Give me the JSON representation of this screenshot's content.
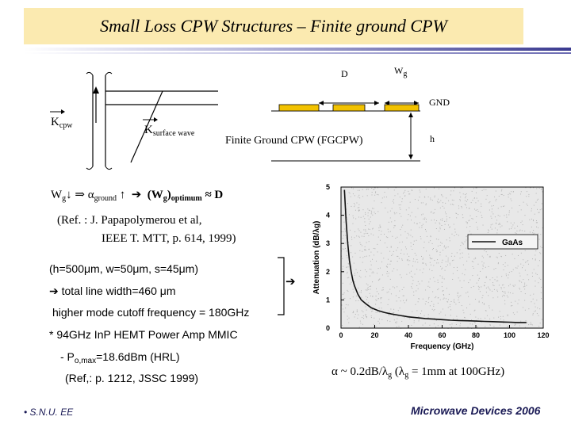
{
  "title": "Small Loss CPW Structures – Finite ground CPW",
  "diagram": {
    "kcpw_main": "K",
    "kcpw_sub": "cpw",
    "ksw_main": "K",
    "ksw_sub": "surface wave",
    "label_d": "D",
    "label_wg_main": "W",
    "label_wg_sub": "g",
    "label_gnd": "GND",
    "label_h": "h",
    "caption": "Finite Ground CPW (FGCPW)"
  },
  "relation": {
    "wg": "W",
    "wg_sub": "g",
    "down_arrow": "↓",
    "implies": "⇒",
    "alpha": "α",
    "alpha_sub": "ground",
    "up_arrow": "↑",
    "right_arrow": "➔",
    "optimum_main": "(W",
    "optimum_sub1": "g",
    "optimum_close": ")",
    "optimum_sub2": "optimum",
    "approx": "≈",
    "d": "D"
  },
  "reference": {
    "line1": "(Ref. : J. Papapolymerou et al,",
    "line2": "IEEE T. MTT, p. 614, 1999)"
  },
  "specs": {
    "params": "(h=500μm, w=50μm, s=45μm)",
    "arrow": "➔",
    "total_width": "total line width=460 μm",
    "cutoff": "higher mode cutoff frequency = 180GHz",
    "mmic": "* 94GHz InP HEMT Power Amp MMIC",
    "pout_prefix": "- P",
    "pout_sub": "o,max",
    "pout_value": "=18.6dBm (HRL)",
    "ref2": "(Ref,: p. 1212, JSSC 1999)"
  },
  "result": {
    "alpha": "α ~ 0.2dB/λ",
    "sub": "g",
    "paren": " (λ",
    "sub2": "g",
    "rest": " = 1mm at 100GHz)"
  },
  "footer_left": "• S.N.U. EE",
  "footer_right": "Microwave Devices 2006",
  "colors": {
    "title_bg": "#fbeab0",
    "strip": "#f2c200",
    "footer": "#1a1a55"
  },
  "chart_data": {
    "type": "line",
    "title": "",
    "xlabel": "Frequency (GHz)",
    "ylabel": "Attenuation (dB/λg)",
    "xlim": [
      0,
      120
    ],
    "ylim": [
      0,
      5
    ],
    "xticks": [
      0,
      20,
      40,
      60,
      80,
      100,
      120
    ],
    "yticks": [
      0,
      1,
      2,
      3,
      4,
      5
    ],
    "legend": "GaAs",
    "legend_position": "upper-right",
    "grid": false,
    "series": [
      {
        "name": "GaAs",
        "x": [
          2,
          3,
          4,
          5,
          6,
          7,
          8,
          10,
          12,
          15,
          18,
          22,
          26,
          30,
          35,
          40,
          45,
          50,
          55,
          60,
          65,
          70,
          75,
          80,
          85,
          90,
          95,
          100,
          105,
          110
        ],
        "y": [
          4.9,
          3.8,
          3.0,
          2.4,
          2.0,
          1.7,
          1.5,
          1.2,
          1.0,
          0.85,
          0.72,
          0.62,
          0.55,
          0.5,
          0.45,
          0.4,
          0.37,
          0.34,
          0.32,
          0.3,
          0.28,
          0.27,
          0.26,
          0.25,
          0.24,
          0.23,
          0.22,
          0.21,
          0.2,
          0.2
        ]
      }
    ]
  }
}
